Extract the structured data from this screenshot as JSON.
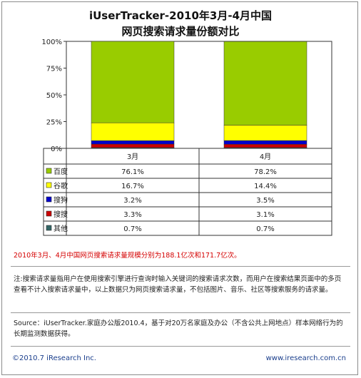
{
  "chart_data": {
    "type": "bar",
    "stacked": true,
    "percent": true,
    "title": "iUserTracker-2010年3月-4月中国",
    "subtitle": "网页搜索请求量份额对比",
    "categories": [
      "3月",
      "4月"
    ],
    "ylim": [
      0,
      100
    ],
    "yticks": [
      "0%",
      "25%",
      "50%",
      "75%",
      "100%"
    ],
    "series": [
      {
        "name": "百度",
        "color": "#99cc00",
        "values": [
          76.1,
          78.2
        ],
        "labels": [
          "76.1%",
          "78.2%"
        ]
      },
      {
        "name": "谷歌",
        "color": "#ffff00",
        "values": [
          16.7,
          14.4
        ],
        "labels": [
          "16.7%",
          "14.4%"
        ]
      },
      {
        "name": "搜狗",
        "color": "#0000cc",
        "values": [
          3.2,
          3.5
        ],
        "labels": [
          "3.2%",
          "3.5%"
        ]
      },
      {
        "name": "搜搜",
        "color": "#cc0000",
        "values": [
          3.3,
          3.1
        ],
        "labels": [
          "3.3%",
          "3.1%"
        ]
      },
      {
        "name": "其他",
        "color": "#336666",
        "values": [
          0.7,
          0.7
        ],
        "labels": [
          "0.7%",
          "0.7%"
        ]
      }
    ],
    "legend": "table-below",
    "grid": false
  },
  "notes": {
    "highlight": "2010年3月、4月中国网页搜索请求量规模分别为188.1亿次和171.7亿次。",
    "definition": "注:搜索请求量指用户在使用搜索引擎进行查询时输入关键词的搜索请求次数，而用户在搜索结果页面中的多页查看不计入搜索请求量中，以上数据只为网页搜索请求量，不包括图片、音乐、社区等搜索服务的请求量。",
    "source": "Source：iUserTracker.家庭办公版2010.4，基于对20万名家庭及办公（不含公共上网地点）样本网络行为的长期监测数据获得。"
  },
  "footer": {
    "copyright": "©2010.7 iResearch Inc.",
    "website": "www.iresearch.com.cn"
  }
}
